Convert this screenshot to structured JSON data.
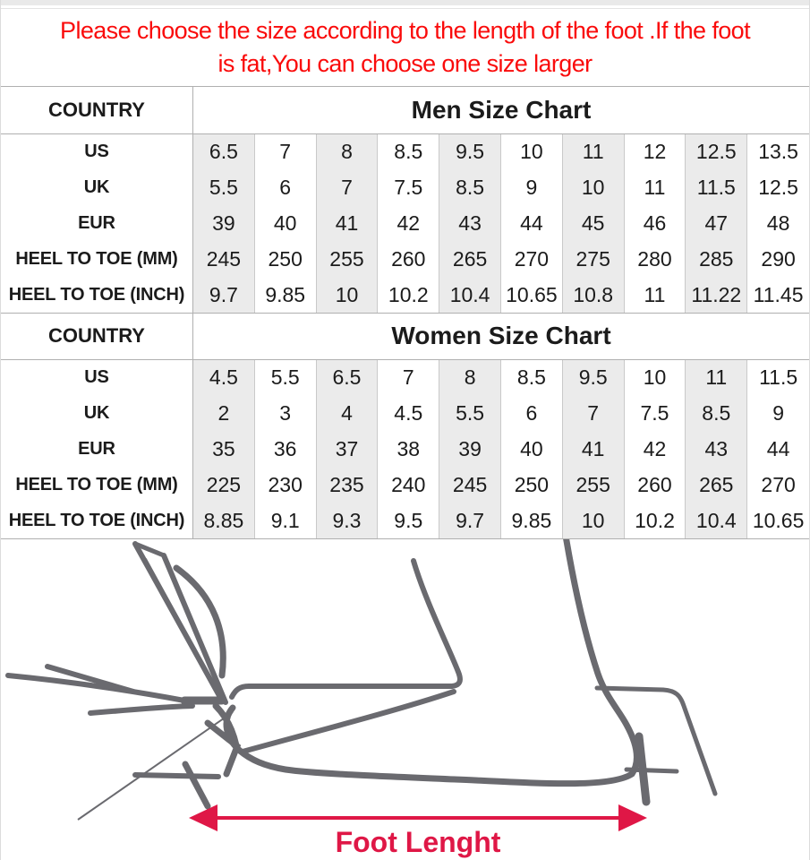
{
  "notice": {
    "line1": "Please choose the size according to the length of the foot .If the foot",
    "line2": "is fat,You can choose one size larger"
  },
  "tables": [
    {
      "id": "men",
      "country_label": "COUNTRY",
      "title": "Men Size Chart",
      "rows": [
        {
          "label": "US",
          "values": [
            "6.5",
            "7",
            "8",
            "8.5",
            "9.5",
            "10",
            "11",
            "12",
            "12.5",
            "13.5"
          ]
        },
        {
          "label": "UK",
          "values": [
            "5.5",
            "6",
            "7",
            "7.5",
            "8.5",
            "9",
            "10",
            "11",
            "11.5",
            "12.5"
          ]
        },
        {
          "label": "EUR",
          "values": [
            "39",
            "40",
            "41",
            "42",
            "43",
            "44",
            "45",
            "46",
            "47",
            "48"
          ]
        },
        {
          "label": "HEEL TO TOE (MM)",
          "values": [
            "245",
            "250",
            "255",
            "260",
            "265",
            "270",
            "275",
            "280",
            "285",
            "290"
          ]
        },
        {
          "label": "HEEL TO TOE (INCH)",
          "values": [
            "9.7",
            "9.85",
            "10",
            "10.2",
            "10.4",
            "10.65",
            "10.8",
            "11",
            "11.22",
            "11.45"
          ]
        }
      ]
    },
    {
      "id": "women",
      "country_label": "COUNTRY",
      "title": "Women Size Chart",
      "rows": [
        {
          "label": "US",
          "values": [
            "4.5",
            "5.5",
            "6.5",
            "7",
            "8",
            "8.5",
            "9.5",
            "10",
            "11",
            "11.5"
          ]
        },
        {
          "label": "UK",
          "values": [
            "2",
            "3",
            "4",
            "4.5",
            "5.5",
            "6",
            "7",
            "7.5",
            "8.5",
            "9"
          ]
        },
        {
          "label": "EUR",
          "values": [
            "35",
            "36",
            "37",
            "38",
            "39",
            "40",
            "41",
            "42",
            "43",
            "44"
          ]
        },
        {
          "label": "HEEL TO TOE (MM)",
          "values": [
            "225",
            "230",
            "235",
            "240",
            "245",
            "250",
            "255",
            "260",
            "265",
            "270"
          ]
        },
        {
          "label": "HEEL TO TOE (INCH)",
          "values": [
            "8.85",
            "9.1",
            "9.3",
            "9.5",
            "9.7",
            "9.85",
            "10",
            "10.2",
            "10.4",
            "10.65"
          ]
        }
      ]
    }
  ],
  "diagram": {
    "label": "Foot Lenght"
  },
  "colors": {
    "notice_red": "#fa0b0b",
    "accent_red": "#df1746",
    "drawing_gray": "#6a6a6f",
    "stripe_gray": "#ebebeb",
    "line_heavy": "#b0b0b0",
    "line_light": "#c9c9c9",
    "text_dark": "#1b1b1b",
    "top_strip": "#e9e9e9"
  }
}
